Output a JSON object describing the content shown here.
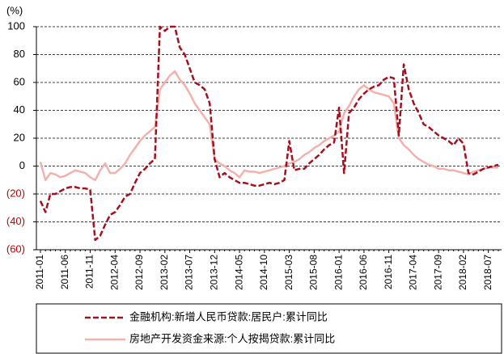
{
  "chart_data": {
    "type": "line",
    "y_label": "(%)",
    "categories": [
      "2011-01",
      null,
      null,
      null,
      null,
      "2011-06",
      null,
      null,
      null,
      null,
      "2011-11",
      null,
      null,
      null,
      null,
      "2012-04",
      null,
      null,
      null,
      null,
      "2012-09",
      null,
      null,
      null,
      null,
      "2013-02",
      null,
      null,
      null,
      null,
      "2013-07",
      null,
      null,
      null,
      null,
      "2013-12",
      null,
      null,
      null,
      null,
      "2014-05",
      null,
      null,
      null,
      null,
      "2014-10",
      null,
      null,
      null,
      null,
      "2015-03",
      null,
      null,
      null,
      null,
      "2015-08",
      null,
      null,
      null,
      null,
      "2016-01",
      null,
      null,
      null,
      null,
      "2016-06",
      null,
      null,
      null,
      null,
      "2016-11",
      null,
      null,
      null,
      null,
      "2017-04",
      null,
      null,
      null,
      null,
      "2017-09",
      null,
      null,
      null,
      null,
      "2018-02",
      null,
      null,
      null,
      null,
      "2018-07",
      null,
      null
    ],
    "series": [
      {
        "name": "金融机构:新增人民币贷款:居民户:累计同比",
        "color": "#a50f1e",
        "line_style": "dashed",
        "values": [
          -25,
          -33,
          -20,
          -20,
          -18,
          -16,
          -15,
          -15,
          -16,
          -16,
          -17,
          -53,
          -50,
          -42,
          -35,
          -33,
          -28,
          -22,
          -20,
          -12,
          -5,
          -2,
          2,
          5,
          100,
          97,
          100,
          100,
          85,
          80,
          70,
          60,
          58,
          55,
          45,
          5,
          -8,
          -5,
          -8,
          -10,
          -12,
          -12,
          -13,
          -14,
          -14,
          -13,
          -12,
          -13,
          -12,
          -10,
          18,
          -3,
          -2,
          -2,
          2,
          5,
          8,
          12,
          15,
          17,
          42,
          -5,
          38,
          42,
          48,
          52,
          55,
          57,
          58,
          62,
          64,
          63,
          22,
          73,
          55,
          45,
          38,
          30,
          28,
          25,
          22,
          20,
          18,
          15,
          20,
          16,
          -5,
          -6,
          -4,
          -2,
          -1,
          0,
          1
        ]
      },
      {
        "name": "房地产开发资金来源:个人按揭贷款:累计同比",
        "color": "#f2b1ab",
        "line_style": "solid",
        "values": [
          3,
          -10,
          -5,
          -6,
          -8,
          -7,
          -5,
          -3,
          -4,
          -5,
          -8,
          -10,
          -3,
          2,
          -5,
          -5,
          -2,
          2,
          8,
          13,
          18,
          22,
          25,
          28,
          55,
          60,
          65,
          68,
          62,
          58,
          52,
          45,
          40,
          35,
          30,
          5,
          2,
          0,
          -3,
          -5,
          -8,
          -3,
          -4,
          -4,
          -5,
          -4,
          -3,
          -2,
          -1,
          0,
          2,
          3,
          5,
          8,
          10,
          13,
          15,
          18,
          20,
          22,
          25,
          38,
          43,
          50,
          55,
          58,
          55,
          53,
          52,
          51,
          50,
          45,
          20,
          15,
          12,
          8,
          5,
          3,
          1,
          0,
          -2,
          -2,
          -3,
          -3,
          -4,
          -5,
          -6,
          -4,
          -3,
          -2,
          -1,
          -1,
          -1
        ]
      }
    ],
    "ylim": [
      -60,
      100
    ],
    "yticks": [
      100,
      80,
      60,
      40,
      20,
      0,
      {
        "value": -20,
        "label": "(20)"
      },
      {
        "value": -40,
        "label": "(40)"
      },
      {
        "value": -60,
        "label": "(60)"
      }
    ],
    "grid": true
  }
}
